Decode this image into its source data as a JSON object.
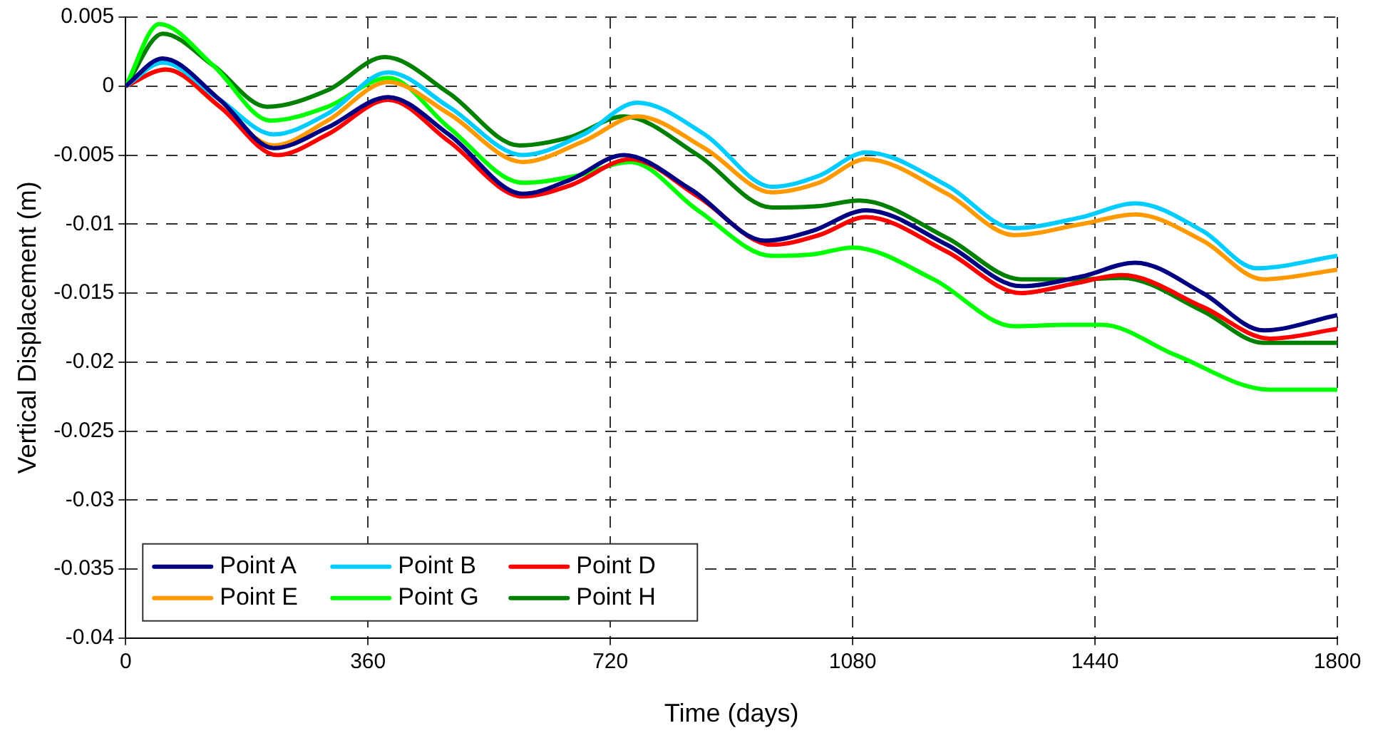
{
  "chart_data": {
    "type": "line",
    "xlabel": "Time (days)",
    "ylabel": "Vertical Displacement (m)",
    "xlim": [
      0,
      1800
    ],
    "xticks": [
      0,
      360,
      720,
      1080,
      1440,
      1800
    ],
    "ylim": [
      -0.04,
      0.005
    ],
    "yticks": [
      0.005,
      0,
      -0.005,
      -0.01,
      -0.015,
      -0.02,
      -0.025,
      -0.03,
      -0.035,
      -0.04
    ],
    "grid": true,
    "line_style": "solid",
    "marker": "none",
    "legend": "bottom left",
    "series": [
      {
        "name": "Point A",
        "color": "#000080",
        "x": [
          0,
          55,
          140,
          220,
          300,
          390,
          480,
          590,
          660,
          740,
          840,
          950,
          1020,
          1100,
          1220,
          1330,
          1420,
          1500,
          1600,
          1690,
          1800
        ],
        "values": [
          0,
          0.002,
          -0.001,
          -0.0045,
          -0.003,
          -0.0008,
          -0.0035,
          -0.0078,
          -0.0068,
          -0.005,
          -0.0075,
          -0.0112,
          -0.0105,
          -0.009,
          -0.0115,
          -0.0145,
          -0.0138,
          -0.0128,
          -0.015,
          -0.0177,
          -0.0166
        ]
      },
      {
        "name": "Point B",
        "color": "#00ccff",
        "x": [
          0,
          55,
          140,
          220,
          300,
          390,
          480,
          590,
          680,
          760,
          860,
          960,
          1030,
          1100,
          1220,
          1320,
          1420,
          1500,
          1600,
          1680,
          1800
        ],
        "values": [
          0,
          0.0017,
          -0.001,
          -0.0035,
          -0.002,
          0.001,
          -0.0015,
          -0.005,
          -0.0035,
          -0.0012,
          -0.0035,
          -0.0073,
          -0.0065,
          -0.0048,
          -0.0072,
          -0.0103,
          -0.0095,
          -0.0085,
          -0.0105,
          -0.0132,
          -0.0123
        ]
      },
      {
        "name": "Point D",
        "color": "#ff0000",
        "x": [
          0,
          60,
          140,
          225,
          300,
          390,
          480,
          590,
          660,
          750,
          850,
          960,
          1030,
          1100,
          1220,
          1330,
          1410,
          1480,
          1600,
          1700,
          1800
        ],
        "values": [
          0,
          0.0012,
          -0.0015,
          -0.005,
          -0.0035,
          -0.001,
          -0.004,
          -0.008,
          -0.0072,
          -0.0053,
          -0.008,
          -0.0115,
          -0.0108,
          -0.0095,
          -0.012,
          -0.015,
          -0.0143,
          -0.0137,
          -0.016,
          -0.0183,
          -0.0176
        ]
      },
      {
        "name": "Point E",
        "color": "#ff9900",
        "x": [
          0,
          60,
          140,
          220,
          300,
          390,
          480,
          590,
          680,
          760,
          860,
          960,
          1030,
          1100,
          1220,
          1320,
          1420,
          1500,
          1600,
          1690,
          1800
        ],
        "values": [
          0,
          0.0012,
          -0.0015,
          -0.0043,
          -0.0025,
          0.0003,
          -0.002,
          -0.0055,
          -0.004,
          -0.0022,
          -0.0045,
          -0.0077,
          -0.007,
          -0.0053,
          -0.0078,
          -0.0108,
          -0.01,
          -0.0093,
          -0.0112,
          -0.014,
          -0.0133
        ]
      },
      {
        "name": "Point G",
        "color": "#00ff00",
        "x": [
          0,
          50,
          130,
          215,
          300,
          390,
          480,
          590,
          670,
          750,
          850,
          960,
          1020,
          1080,
          1200,
          1320,
          1400,
          1450,
          1560,
          1700,
          1800
        ],
        "values": [
          0,
          0.0045,
          0.0015,
          -0.0025,
          -0.0015,
          0.0006,
          -0.003,
          -0.007,
          -0.0065,
          -0.0055,
          -0.009,
          -0.0123,
          -0.0122,
          -0.0117,
          -0.014,
          -0.0174,
          -0.0173,
          -0.0173,
          -0.0195,
          -0.022,
          -0.022
        ]
      },
      {
        "name": "Point H",
        "color": "#008000",
        "x": [
          0,
          55,
          130,
          210,
          300,
          385,
          480,
          585,
          660,
          740,
          850,
          960,
          1030,
          1090,
          1220,
          1330,
          1420,
          1480,
          1600,
          1690,
          1800
        ],
        "values": [
          0,
          0.0038,
          0.0015,
          -0.0015,
          -0.0003,
          0.0021,
          -0.0005,
          -0.0043,
          -0.0037,
          -0.0022,
          -0.005,
          -0.0088,
          -0.0087,
          -0.0083,
          -0.011,
          -0.014,
          -0.014,
          -0.0139,
          -0.0163,
          -0.0186,
          -0.0186
        ]
      }
    ]
  }
}
